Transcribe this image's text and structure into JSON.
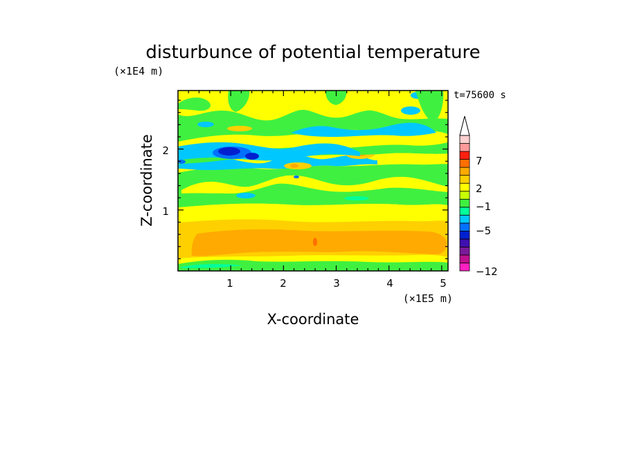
{
  "chart_data": {
    "type": "heatmap",
    "title": "disturbunce of potential temperature",
    "xlabel": "X-coordinate",
    "ylabel": "Z-coordinate",
    "x_scale_note": "(×1E5 m)",
    "y_scale_note": "(×1E4 m)",
    "time_label": "t=75600 s",
    "xlim": [
      0,
      5.12
    ],
    "ylim": [
      0,
      2.96
    ],
    "x_ticks": [
      "1",
      "2",
      "3",
      "4",
      "5"
    ],
    "y_ticks": [
      "1",
      "2"
    ],
    "colorbar": {
      "labels": [
        "7",
        "2",
        "−1",
        "−5",
        "−12"
      ],
      "levels": [
        -12,
        -10,
        -8,
        -6,
        -5,
        -4,
        -3,
        -2,
        -1,
        0,
        1,
        2,
        3,
        5,
        7,
        9,
        11
      ],
      "colors": [
        "#ff20c0",
        "#c01090",
        "#7a1a9a",
        "#4010b0",
        "#0020d0",
        "#0070ff",
        "#00c8ff",
        "#00ff9a",
        "#40f040",
        "#c8ff00",
        "#ffff00",
        "#ffd000",
        "#ffaa00",
        "#ff7000",
        "#ff2010",
        "#ff9a9a",
        "#ffd0d0"
      ],
      "extend": "max"
    },
    "field_bands": [
      {
        "z": [
          0.0,
          0.1
        ],
        "class": "green"
      },
      {
        "z": [
          0.1,
          0.25
        ],
        "class": "yellow"
      },
      {
        "z": [
          0.25,
          0.62
        ],
        "class": "orange"
      },
      {
        "z": [
          0.62,
          0.8
        ],
        "class": "gold"
      },
      {
        "z": [
          0.8,
          1.1
        ],
        "class": "yellow"
      },
      {
        "z": [
          1.1,
          1.6
        ],
        "class": "green"
      },
      {
        "z": [
          1.6,
          1.8
        ],
        "class": "yellow"
      },
      {
        "z": [
          1.8,
          2.0
        ],
        "class": "green"
      },
      {
        "z": [
          2.0,
          2.2
        ],
        "class": "yellow"
      },
      {
        "z": [
          2.2,
          2.6
        ],
        "class": "green"
      },
      {
        "z": [
          2.6,
          2.96
        ],
        "class": "yellow"
      }
    ]
  }
}
